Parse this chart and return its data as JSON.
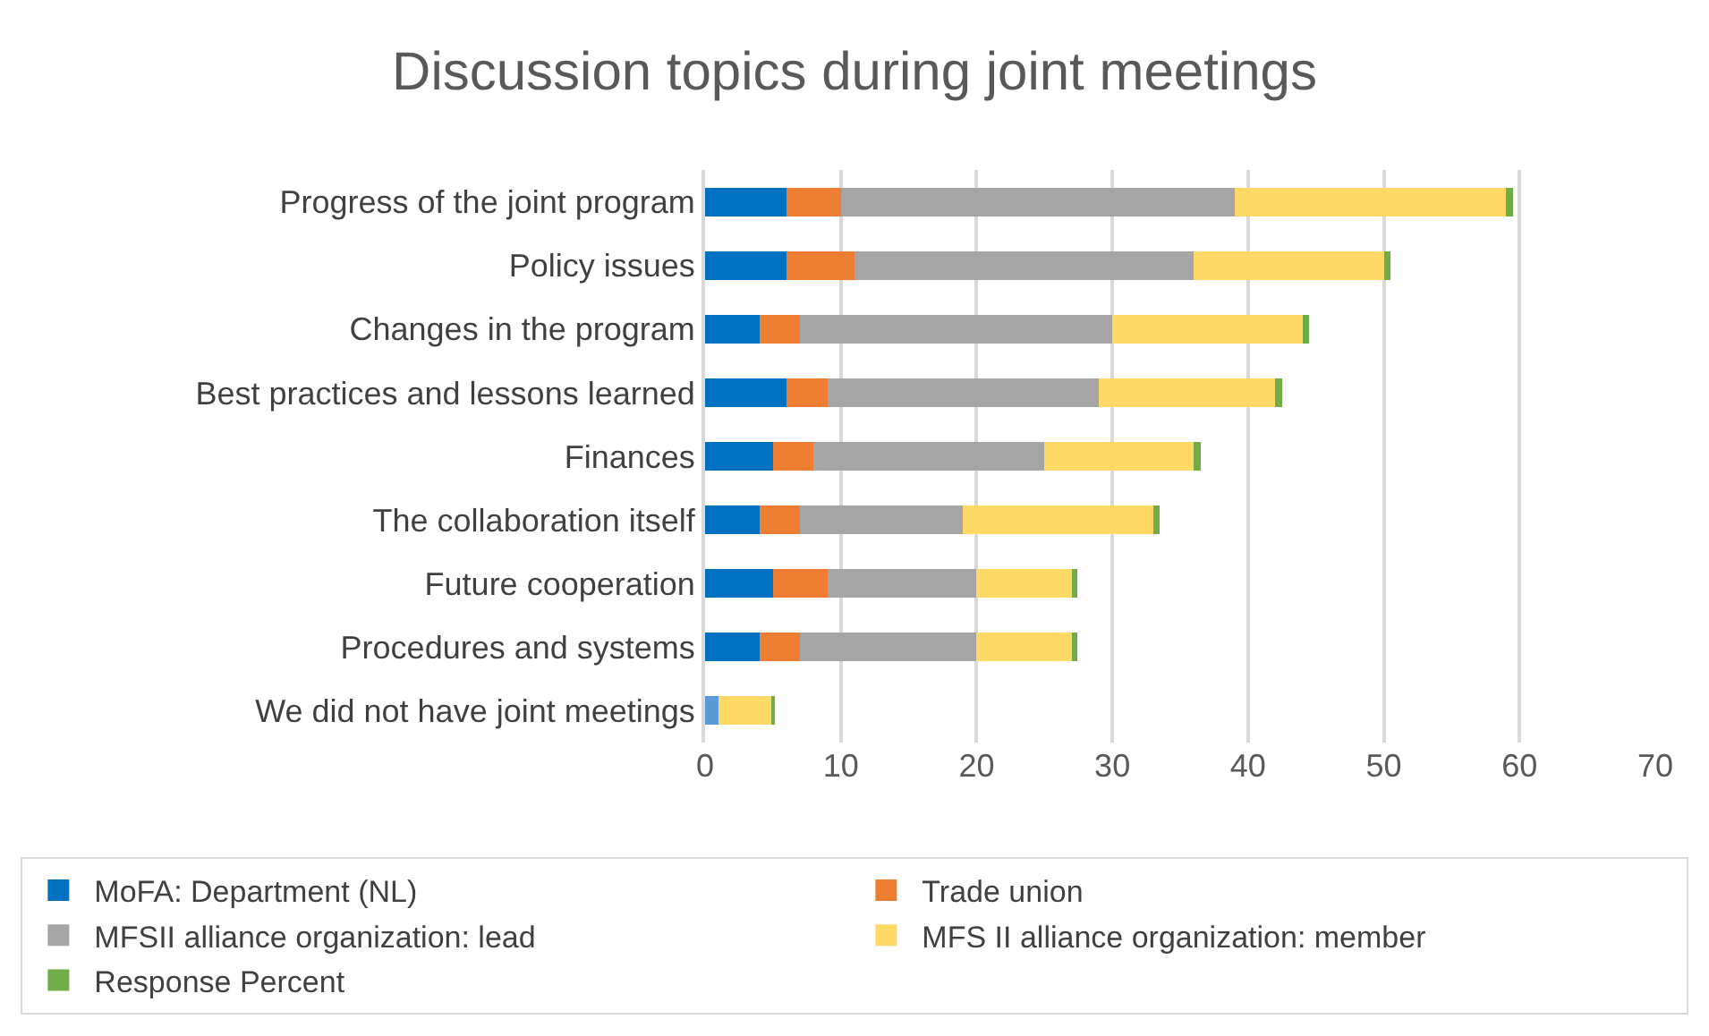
{
  "chart_data": {
    "type": "bar",
    "orientation": "horizontal",
    "stacked": true,
    "title": "Discussion topics during joint meetings",
    "categories": [
      "Progress of the joint program",
      "Policy issues",
      "Changes in the program",
      "Best practices and lessons learned",
      "Finances",
      "The collaboration itself",
      "Future cooperation",
      "Procedures and systems",
      "We did not have joint meetings"
    ],
    "series": [
      {
        "name": "MoFA: Department (NL)",
        "color": "#0070c0",
        "colors": [
          null,
          null,
          null,
          null,
          null,
          null,
          null,
          null,
          "#5b9bd5"
        ],
        "values": [
          6,
          6,
          4,
          6,
          5,
          4,
          5,
          4,
          1
        ]
      },
      {
        "name": "Trade union",
        "color": "#ed7d31",
        "values": [
          4,
          5,
          3,
          3,
          3,
          3,
          4,
          3,
          null
        ]
      },
      {
        "name": "MFSII alliance organization: lead",
        "color": "#a5a5a5",
        "values": [
          29,
          25,
          23,
          20,
          17,
          12,
          11,
          13,
          null
        ]
      },
      {
        "name": "MFS II alliance organization: member",
        "color": "#ffd966",
        "values": [
          20,
          14,
          14,
          13,
          11,
          14,
          7,
          7,
          4
        ]
      },
      {
        "name": "Response Percent",
        "color": "#70ad47",
        "values": [
          0.5,
          0.5,
          0.5,
          0.5,
          0.5,
          0.5,
          0.4,
          0.4,
          0.1
        ]
      }
    ],
    "xlim": [
      0,
      70
    ],
    "xticks": [
      0,
      10,
      20,
      30,
      40,
      50,
      60,
      70
    ],
    "grid": "x",
    "legend": "bottom"
  }
}
